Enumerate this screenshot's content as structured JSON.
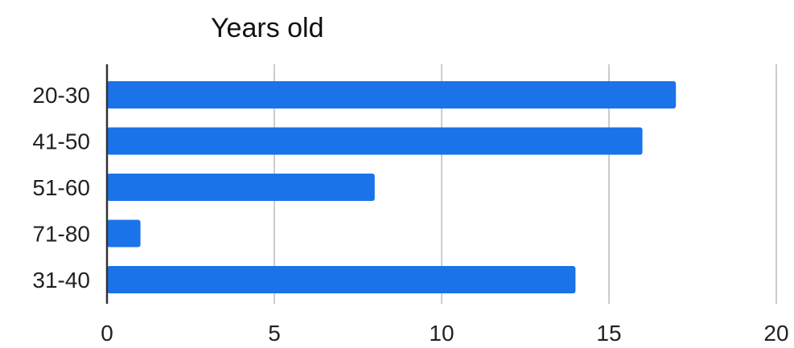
{
  "chart_data": {
    "type": "bar",
    "orientation": "horizontal",
    "title": "Years old",
    "xlabel": "",
    "ylabel": "",
    "categories": [
      "20-30",
      "41-50",
      "51-60",
      "71-80",
      "31-40"
    ],
    "values": [
      17,
      16,
      8,
      1,
      14
    ],
    "xlim": [
      0,
      20
    ],
    "xticks": [
      0,
      5,
      10,
      15,
      20
    ],
    "grid": true,
    "legend": "none",
    "bar_color": "#1a73e8",
    "grid_color": "#cccccc",
    "axis_color": "#333333"
  }
}
